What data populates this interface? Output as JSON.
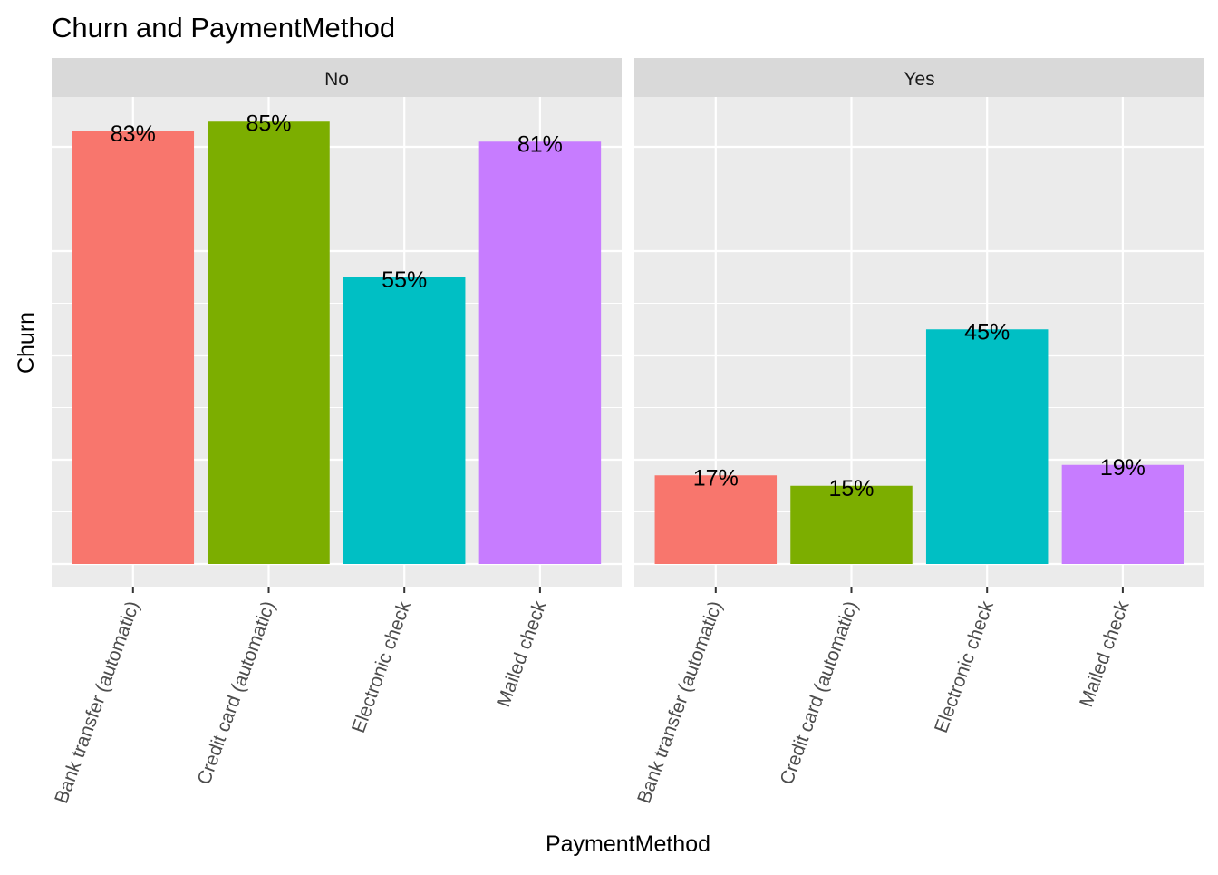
{
  "chart_data": {
    "type": "bar",
    "title": "Churn and PaymentMethod",
    "xlabel": "PaymentMethod",
    "ylabel": "Churn",
    "ylim": [
      0,
      0.9
    ],
    "grid": true,
    "legend": "none",
    "categories": [
      "Bank transfer (automatic)",
      "Credit card (automatic)",
      "Electronic check",
      "Mailed check"
    ],
    "colors": [
      "#F8766D",
      "#7CAE00",
      "#00BFC4",
      "#C77CFF"
    ],
    "facets": [
      {
        "name": "No",
        "values": [
          0.83,
          0.85,
          0.55,
          0.81
        ],
        "labels": [
          "83%",
          "85%",
          "55%",
          "81%"
        ]
      },
      {
        "name": "Yes",
        "values": [
          0.17,
          0.15,
          0.45,
          0.19
        ],
        "labels": [
          "17%",
          "15%",
          "45%",
          "19%"
        ]
      }
    ]
  },
  "style": {
    "panel_background": "#EBEBEB",
    "strip_background": "#D9D9D9",
    "grid_color": "#FFFFFF",
    "tick_color": "#333333"
  }
}
